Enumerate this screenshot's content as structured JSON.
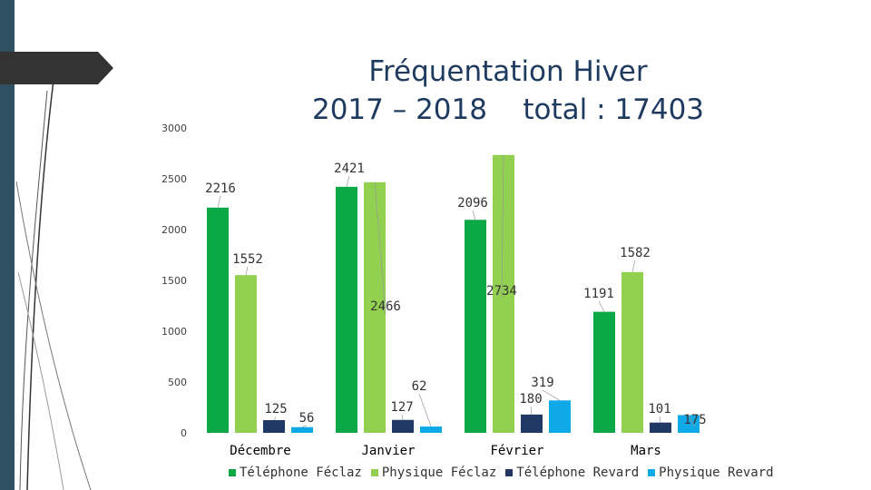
{
  "title": {
    "line1": "Fréquentation Hiver",
    "line2": "2017 – 2018    total : 17403"
  },
  "colors": {
    "telephone_feclaz": "#0aa847",
    "physique_feclaz": "#92d050",
    "telephone_revard": "#1f3864",
    "physique_revard": "#0fa9e8",
    "strip": "#2f5062",
    "title": "#1e3a5f"
  },
  "chart_data": {
    "type": "bar",
    "categories": [
      "Décembre",
      "Janvier",
      "Février",
      "Mars"
    ],
    "ylim": [
      0,
      3000
    ],
    "yticks": [
      0,
      500,
      1000,
      1500,
      2000,
      2500,
      3000
    ],
    "grid": false,
    "legend_position": "bottom",
    "series": [
      {
        "name": "Téléphone Féclaz",
        "color": "#0aa847",
        "values": [
          2216,
          2421,
          2096,
          1191
        ]
      },
      {
        "name": "Physique Féclaz",
        "color": "#92d050",
        "values": [
          1552,
          2466,
          2734,
          1582
        ]
      },
      {
        "name": "Téléphone Revard",
        "color": "#1f3864",
        "values": [
          125,
          127,
          180,
          101
        ]
      },
      {
        "name": "Physique Revard",
        "color": "#0fa9e8",
        "values": [
          56,
          62,
          319,
          175
        ]
      }
    ]
  }
}
